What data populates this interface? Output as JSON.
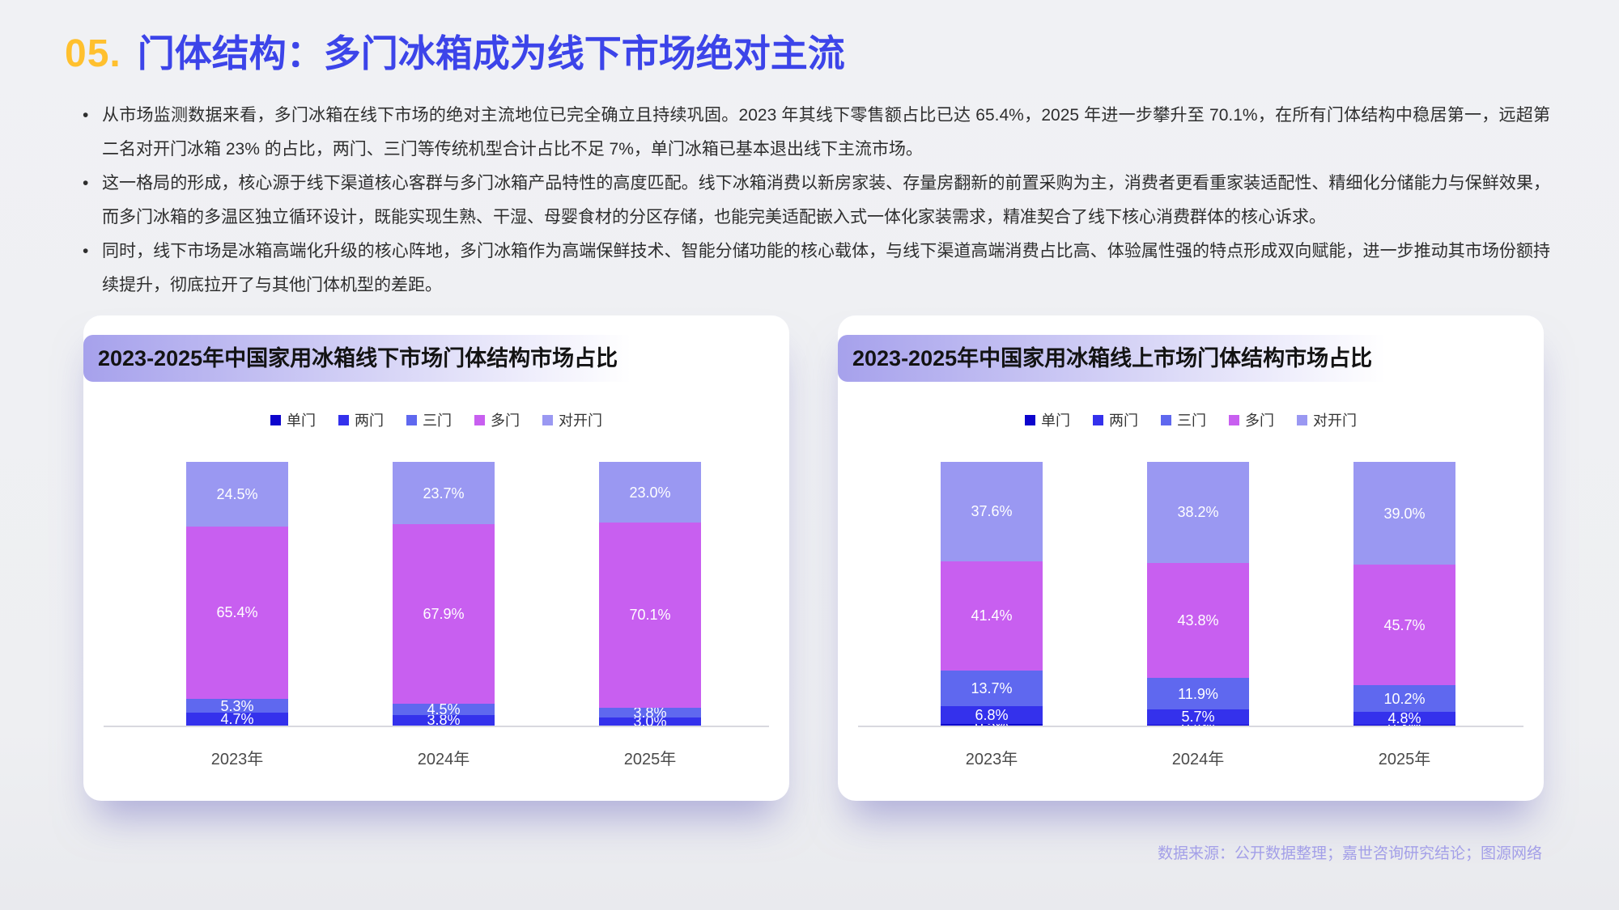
{
  "page": {
    "section_number": "05.",
    "title": "门体结构：多门冰箱成为线下市场绝对主流",
    "bullets": [
      "从市场监测数据来看，多门冰箱在线下市场的绝对主流地位已完全确立且持续巩固。2023 年其线下零售额占比已达 65.4%，2025 年进一步攀升至 70.1%，在所有门体结构中稳居第一，远超第二名对开门冰箱 23% 的占比，两门、三门等传统机型合计占比不足 7%，单门冰箱已基本退出线下主流市场。",
      "这一格局的形成，核心源于线下渠道核心客群与多门冰箱产品特性的高度匹配。线下冰箱消费以新房家装、存量房翻新的前置采购为主，消费者更看重家装适配性、精细化分储能力与保鲜效果，而多门冰箱的多温区独立循环设计，既能实现生熟、干湿、母婴食材的分区存储，也能完美适配嵌入式一体化家装需求，精准契合了线下核心消费群体的核心诉求。",
      "同时，线下市场是冰箱高端化升级的核心阵地，多门冰箱作为高端保鲜技术、智能分储功能的核心载体，与线下渠道高端消费占比高、体验属性强的特点形成双向赋能，进一步推动其市场份额持续提升，彻底拉开了与其他门体机型的差距。"
    ],
    "footer": "数据来源：公开数据整理；嘉世咨询研究结论；图源网络"
  },
  "colors": {
    "section_number": "#ffc02e",
    "title": "#3c44e9",
    "footer_text": "#a39fe8",
    "series": {
      "单门": "#0d04cd",
      "两门": "#3431ec",
      "三门": "#5f68ef",
      "多门": "#c85ff0",
      "对开门": "#9a98f2"
    }
  },
  "chart_data": [
    {
      "type": "bar",
      "stacked": true,
      "title": "2023-2025年中国家用冰箱线下市场门体结构市场占比",
      "categories": [
        "2023年",
        "2024年",
        "2025年"
      ],
      "series": [
        {
          "name": "单门",
          "values": [
            0.1,
            0.1,
            0.1
          ]
        },
        {
          "name": "两门",
          "values": [
            4.7,
            3.8,
            3.0
          ]
        },
        {
          "name": "三门",
          "values": [
            5.3,
            4.5,
            3.8
          ]
        },
        {
          "name": "多门",
          "values": [
            65.4,
            67.9,
            70.1
          ]
        },
        {
          "name": "对开门",
          "values": [
            24.5,
            23.7,
            23.0
          ]
        }
      ],
      "unit": "%",
      "ylim": [
        0,
        100
      ],
      "grid": false,
      "legend_position": "top",
      "value_labels": true
    },
    {
      "type": "bar",
      "stacked": true,
      "title": "2023-2025年中国家用冰箱线上市场门体结构市场占比",
      "categories": [
        "2023年",
        "2024年",
        "2025年"
      ],
      "series": [
        {
          "name": "单门",
          "values": [
            0.5,
            0.4,
            0.3
          ]
        },
        {
          "name": "两门",
          "values": [
            6.8,
            5.7,
            4.8
          ]
        },
        {
          "name": "三门",
          "values": [
            13.7,
            11.9,
            10.2
          ]
        },
        {
          "name": "多门",
          "values": [
            41.4,
            43.8,
            45.7
          ]
        },
        {
          "name": "对开门",
          "values": [
            37.6,
            38.2,
            39.0
          ]
        }
      ],
      "unit": "%",
      "ylim": [
        0,
        100
      ],
      "grid": false,
      "legend_position": "top",
      "value_labels": true
    }
  ]
}
